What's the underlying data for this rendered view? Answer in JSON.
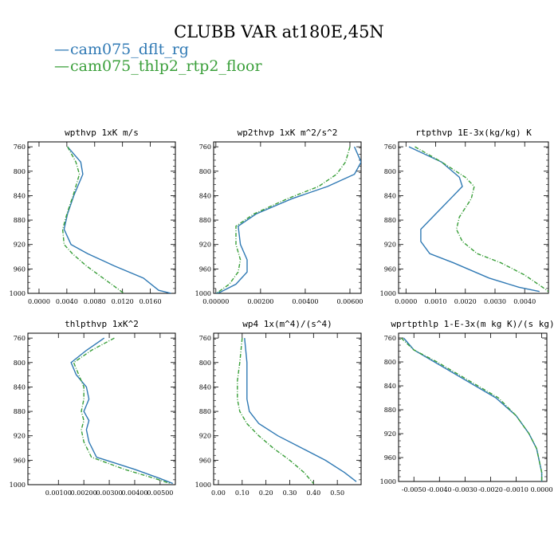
{
  "title": "CLUBB VAR at180E,45N",
  "legend": [
    {
      "name": "cam075_dflt_rg",
      "color": "#2f79b4"
    },
    {
      "name": "cam075_thlp2_rtp2_floor",
      "color": "#3a9f3a"
    }
  ],
  "chart_data": [
    {
      "type": "line",
      "title": "wpthvp  1xK m/s",
      "xlim": [
        -0.0016,
        0.0196
      ],
      "ylim": [
        1000,
        752
      ],
      "xticks": [
        0.0,
        0.004,
        0.008,
        0.012,
        0.016
      ],
      "xtick_labels": [
        "0.0000",
        "0.0040",
        "0.0080",
        "0.0120",
        "0.0160"
      ],
      "yticks": [
        760,
        800,
        840,
        880,
        920,
        960,
        1000
      ],
      "ytick_labels": [
        "760",
        "800",
        "840",
        "880",
        "920",
        "960",
        "1000"
      ],
      "series": [
        {
          "name": "cam075_dflt_rg",
          "color": "#2f79b4",
          "x": [
            0.0041,
            0.006,
            0.0063,
            0.005,
            0.0041,
            0.0036,
            0.0046,
            0.007,
            0.0108,
            0.015,
            0.0172,
            0.019
          ],
          "y": [
            760,
            785,
            805,
            840,
            870,
            895,
            920,
            935,
            955,
            975,
            995,
            1000
          ]
        },
        {
          "name": "cam075_thlp2_rtp2_floor",
          "color": "#3a9f3a",
          "x": [
            0.0041,
            0.0053,
            0.0058,
            0.0049,
            0.004,
            0.0034,
            0.0036,
            0.0048,
            0.0068,
            0.0092,
            0.011,
            0.0122
          ],
          "y": [
            760,
            785,
            805,
            840,
            870,
            895,
            920,
            935,
            955,
            975,
            990,
            1000
          ]
        }
      ]
    },
    {
      "type": "line",
      "title": "wp2thvp  1xK m^2/s^2",
      "xlim": [
        -0.0001,
        0.0065
      ],
      "ylim": [
        1000,
        752
      ],
      "xticks": [
        0.0,
        0.002,
        0.004,
        0.006
      ],
      "xtick_labels": [
        "0.00000",
        "0.00200",
        "0.00400",
        "0.00600"
      ],
      "yticks": [
        760,
        800,
        840,
        880,
        920,
        960,
        1000
      ],
      "ytick_labels": [
        "760",
        "800",
        "840",
        "880",
        "920",
        "960",
        "1000"
      ],
      "series": [
        {
          "name": "cam075_dflt_rg",
          "color": "#2f79b4",
          "x": [
            0.0062,
            0.0065,
            0.0062,
            0.005,
            0.0034,
            0.0018,
            0.001,
            0.0011,
            0.0014,
            0.0014,
            0.0009,
            0.0002,
            0.0
          ],
          "y": [
            760,
            785,
            805,
            825,
            845,
            870,
            890,
            920,
            945,
            965,
            985,
            998,
            1000
          ]
        },
        {
          "name": "cam075_thlp2_rtp2_floor",
          "color": "#3a9f3a",
          "x": [
            0.006,
            0.0058,
            0.0054,
            0.0046,
            0.0032,
            0.0017,
            0.0009,
            0.0009,
            0.0011,
            0.001,
            0.0006,
            0.0001,
            0.0
          ],
          "y": [
            760,
            785,
            805,
            825,
            845,
            870,
            890,
            920,
            945,
            965,
            985,
            998,
            1000
          ]
        }
      ]
    },
    {
      "type": "line",
      "title": "rtpthvp  1E-3x(kg/kg) K",
      "xlim": [
        -0.00025,
        0.0048
      ],
      "ylim": [
        1000,
        752
      ],
      "xticks": [
        0.0,
        0.001,
        0.002,
        0.003,
        0.004
      ],
      "xtick_labels": [
        "0.0000",
        "0.0010",
        "0.0020",
        "0.0030",
        "0.0040"
      ],
      "yticks": [
        760,
        800,
        840,
        880,
        920,
        960,
        1000
      ],
      "ytick_labels": [
        "760",
        "800",
        "840",
        "880",
        "920",
        "960",
        "1000"
      ],
      "series": [
        {
          "name": "cam075_dflt_rg",
          "color": "#2f79b4",
          "x": [
            0.0001,
            0.0012,
            0.0018,
            0.0019,
            0.0015,
            0.0009,
            0.0005,
            0.0005,
            0.0008,
            0.0016,
            0.0028,
            0.0038,
            0.0045
          ],
          "y": [
            760,
            785,
            810,
            825,
            845,
            875,
            895,
            915,
            935,
            950,
            975,
            990,
            997
          ]
        },
        {
          "name": "cam075_thlp2_rtp2_floor",
          "color": "#3a9f3a",
          "x": [
            0.0003,
            0.0012,
            0.002,
            0.0023,
            0.0022,
            0.0018,
            0.0017,
            0.0019,
            0.0024,
            0.0032,
            0.004,
            0.0046,
            0.0048
          ],
          "y": [
            760,
            785,
            810,
            825,
            845,
            875,
            895,
            915,
            935,
            950,
            970,
            990,
            997
          ]
        }
      ]
    },
    {
      "type": "line",
      "title": "thlpthvp  1xK^2",
      "xlim": [
        -0.0002,
        0.0056
      ],
      "ylim": [
        1000,
        752
      ],
      "xticks": [
        0.001,
        0.002,
        0.003,
        0.004,
        0.005
      ],
      "xtick_labels": [
        "0.00100",
        "0.00200",
        "0.00300",
        "0.00400",
        "0.00500"
      ],
      "yticks": [
        760,
        800,
        840,
        880,
        920,
        960,
        1000
      ],
      "ytick_labels": [
        "760",
        "800",
        "840",
        "880",
        "920",
        "960",
        "1000"
      ],
      "series": [
        {
          "name": "cam075_dflt_rg",
          "color": "#2f79b4",
          "x": [
            0.0028,
            0.0021,
            0.0015,
            0.0017,
            0.0021,
            0.0022,
            0.002,
            0.0022,
            0.0021,
            0.0022,
            0.0025,
            0.004,
            0.005,
            0.0055
          ],
          "y": [
            760,
            780,
            800,
            820,
            840,
            860,
            880,
            895,
            910,
            930,
            955,
            975,
            990,
            998
          ]
        },
        {
          "name": "cam075_thlp2_rtp2_floor",
          "color": "#3a9f3a",
          "x": [
            0.0032,
            0.0023,
            0.0016,
            0.0018,
            0.002,
            0.002,
            0.0019,
            0.002,
            0.0019,
            0.002,
            0.0023,
            0.0036,
            0.0048,
            0.0054
          ],
          "y": [
            760,
            780,
            800,
            820,
            840,
            860,
            880,
            895,
            910,
            930,
            955,
            975,
            990,
            998
          ]
        }
      ]
    },
    {
      "type": "line",
      "title": "wp4  1x(m^4)/(s^4)",
      "xlim": [
        -0.02,
        0.6
      ],
      "ylim": [
        1000,
        752
      ],
      "xticks": [
        0.0,
        0.1,
        0.2,
        0.3,
        0.4,
        0.5
      ],
      "xtick_labels": [
        "0.00",
        "0.10",
        "0.20",
        "0.30",
        "0.40",
        "0.50"
      ],
      "yticks": [
        760,
        800,
        840,
        880,
        920,
        960,
        1000
      ],
      "ytick_labels": [
        "760",
        "800",
        "840",
        "880",
        "920",
        "960",
        "1000"
      ],
      "series": [
        {
          "name": "cam075_dflt_rg",
          "color": "#2f79b4",
          "x": [
            0.11,
            0.12,
            0.12,
            0.12,
            0.13,
            0.17,
            0.25,
            0.35,
            0.45,
            0.53,
            0.58
          ],
          "y": [
            760,
            800,
            830,
            860,
            880,
            900,
            920,
            940,
            960,
            980,
            995
          ]
        },
        {
          "name": "cam075_thlp2_rtp2_floor",
          "color": "#3a9f3a",
          "x": [
            0.1,
            0.09,
            0.08,
            0.08,
            0.09,
            0.12,
            0.17,
            0.23,
            0.3,
            0.36,
            0.4
          ],
          "y": [
            760,
            800,
            830,
            860,
            880,
            900,
            920,
            940,
            960,
            980,
            998
          ]
        }
      ]
    },
    {
      "type": "line",
      "title": "wprtpthlp  1-E-3x(m kg K)/(s kg)",
      "xlim": [
        -0.0056,
        0.0002
      ],
      "ylim": [
        1000,
        752
      ],
      "xticks": [
        -0.005,
        -0.004,
        -0.003,
        -0.002,
        -0.001,
        0.0
      ],
      "xtick_labels": [
        "-0.0050",
        "-0.0040",
        "-0.0030",
        "-0.0020",
        "-0.0010",
        "0.0000"
      ],
      "yticks": [
        760,
        800,
        840,
        880,
        920,
        960,
        1000
      ],
      "ytick_labels": [
        "760",
        "800",
        "840",
        "880",
        "920",
        "960",
        "1000"
      ],
      "series": [
        {
          "name": "cam075_dflt_rg",
          "color": "#2f79b4",
          "x": [
            -0.0054,
            -0.005,
            -0.0042,
            -0.0034,
            -0.0026,
            -0.0018,
            -0.001,
            -0.0005,
            -0.0002,
            -0.0001,
            0.0,
            0.0
          ],
          "y": [
            760,
            780,
            800,
            820,
            840,
            860,
            890,
            920,
            945,
            965,
            985,
            1000
          ]
        },
        {
          "name": "cam075_thlp2_rtp2_floor",
          "color": "#3a9f3a",
          "x": [
            -0.0055,
            -0.005,
            -0.0041,
            -0.0033,
            -0.0025,
            -0.0017,
            -0.001,
            -0.0005,
            -0.0002,
            -0.0001,
            0.0,
            0.0
          ],
          "y": [
            760,
            780,
            800,
            820,
            840,
            860,
            890,
            920,
            945,
            965,
            985,
            1000
          ]
        }
      ]
    }
  ]
}
